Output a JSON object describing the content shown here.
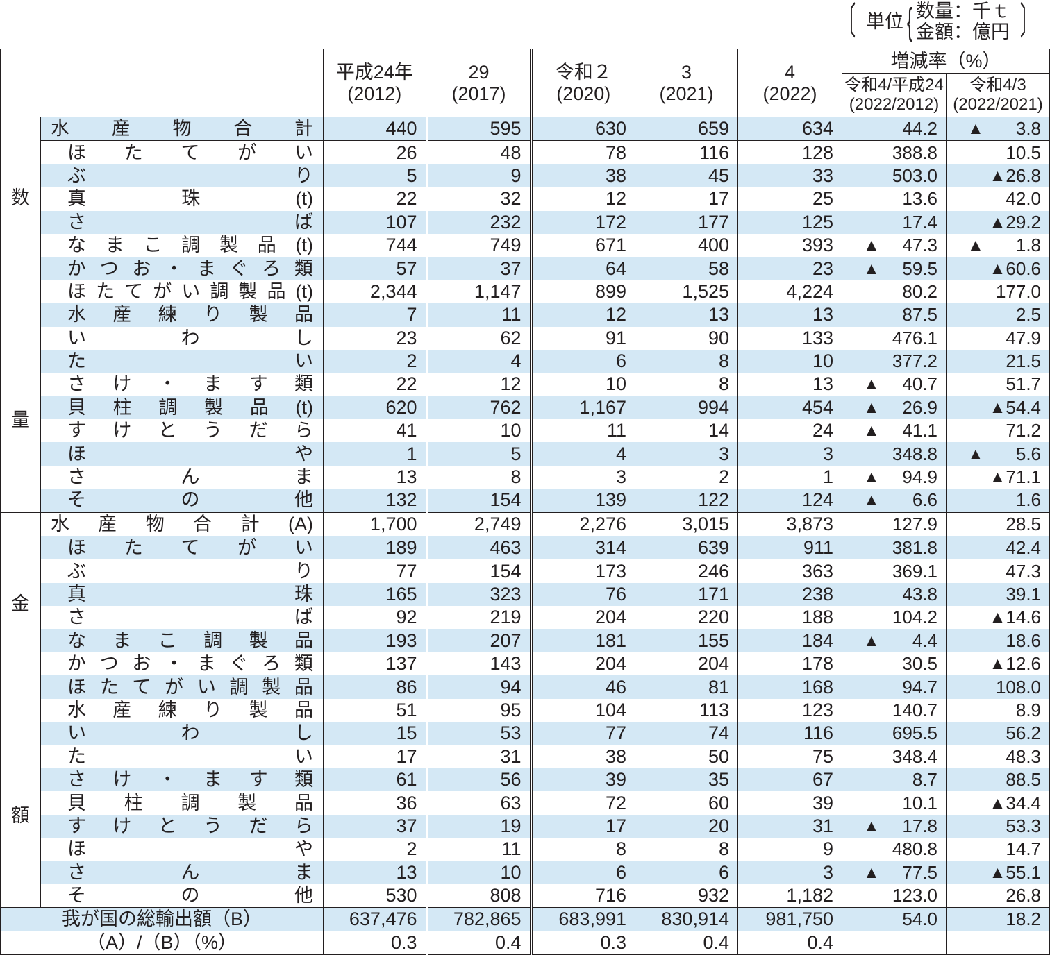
{
  "unit_note": {
    "label": "単位",
    "quantity": "数量：千ｔ",
    "value": "金額：億円"
  },
  "header": {
    "years": [
      {
        "era": "平成24年",
        "western": "(2012)"
      },
      {
        "era": "29",
        "western": "(2017)"
      },
      {
        "era": "令和２",
        "western": "(2020)"
      },
      {
        "era": "3",
        "western": "(2021)"
      },
      {
        "era": "4",
        "western": "(2022)"
      }
    ],
    "rate_group": "増減率（%）",
    "rate_cols": [
      {
        "era": "令和4/平成24",
        "western": "(2022/2012)"
      },
      {
        "era": "令和4/3",
        "western": "(2022/2021)"
      }
    ]
  },
  "sections": [
    {
      "category": [
        "数",
        "量"
      ],
      "rows": [
        {
          "name": [
            "水",
            "産",
            "物",
            "合",
            "計"
          ],
          "values": [
            "440",
            "595",
            "630",
            "659",
            "634"
          ],
          "rate1": "44.2",
          "rate2": "▲ 3.8",
          "shade": true
        },
        {
          "name": [
            "ほ",
            "た",
            "て",
            "が",
            "い"
          ],
          "values": [
            "26",
            "48",
            "78",
            "116",
            "128"
          ],
          "rate1": "388.8",
          "rate2": "10.5",
          "shade": false,
          "indent": true
        },
        {
          "name": [
            "ぶ",
            "り"
          ],
          "values": [
            "5",
            "9",
            "38",
            "45",
            "33"
          ],
          "rate1": "503.0",
          "rate2": "▲26.8",
          "shade": true,
          "indent": true
        },
        {
          "name": [
            "真",
            "珠",
            "(t)"
          ],
          "values": [
            "22",
            "32",
            "12",
            "17",
            "25"
          ],
          "rate1": "13.6",
          "rate2": "42.0",
          "shade": false,
          "indent": true
        },
        {
          "name": [
            "さ",
            "ば"
          ],
          "values": [
            "107",
            "232",
            "172",
            "177",
            "125"
          ],
          "rate1": "17.4",
          "rate2": "▲29.2",
          "shade": true,
          "indent": true
        },
        {
          "name": [
            "な",
            "ま",
            "こ",
            "調",
            "製",
            "品",
            "(t)"
          ],
          "values": [
            "744",
            "749",
            "671",
            "400",
            "393"
          ],
          "rate1": "▲ 47.3",
          "rate2": "▲ 1.8",
          "shade": false,
          "indent": true
        },
        {
          "name": [
            "か",
            "つ",
            "お",
            "・",
            "ま",
            "ぐ",
            "ろ",
            "類"
          ],
          "values": [
            "57",
            "37",
            "64",
            "58",
            "23"
          ],
          "rate1": "▲ 59.5",
          "rate2": "▲60.6",
          "shade": true,
          "indent": true
        },
        {
          "name": [
            "ほ",
            "た",
            "て",
            "が",
            "い",
            "調",
            "製",
            "品",
            "(t)"
          ],
          "values": [
            "2,344",
            "1,147",
            "899",
            "1,525",
            "4,224"
          ],
          "rate1": "80.2",
          "rate2": "177.0",
          "shade": false,
          "indent": true
        },
        {
          "name": [
            "水",
            "産",
            "練",
            "り",
            "製",
            "品"
          ],
          "values": [
            "7",
            "11",
            "12",
            "13",
            "13"
          ],
          "rate1": "87.5",
          "rate2": "2.5",
          "shade": true,
          "indent": true
        },
        {
          "name": [
            "い",
            "わ",
            "し"
          ],
          "values": [
            "23",
            "62",
            "91",
            "90",
            "133"
          ],
          "rate1": "476.1",
          "rate2": "47.9",
          "shade": false,
          "indent": true
        },
        {
          "name": [
            "た",
            "い"
          ],
          "values": [
            "2",
            "4",
            "6",
            "8",
            "10"
          ],
          "rate1": "377.2",
          "rate2": "21.5",
          "shade": true,
          "indent": true
        },
        {
          "name": [
            "さ",
            "け",
            "・",
            "ま",
            "す",
            "類"
          ],
          "values": [
            "22",
            "12",
            "10",
            "8",
            "13"
          ],
          "rate1": "▲ 40.7",
          "rate2": "51.7",
          "shade": false,
          "indent": true
        },
        {
          "name": [
            "貝",
            "柱",
            "調",
            "製",
            "品",
            "(t)"
          ],
          "values": [
            "620",
            "762",
            "1,167",
            "994",
            "454"
          ],
          "rate1": "▲ 26.9",
          "rate2": "▲54.4",
          "shade": true,
          "indent": true
        },
        {
          "name": [
            "す",
            "け",
            "と",
            "う",
            "だ",
            "ら"
          ],
          "values": [
            "41",
            "10",
            "11",
            "14",
            "24"
          ],
          "rate1": "▲ 41.1",
          "rate2": "71.2",
          "shade": false,
          "indent": true
        },
        {
          "name": [
            "ほ",
            "や"
          ],
          "values": [
            "1",
            "5",
            "4",
            "3",
            "3"
          ],
          "rate1": "348.8",
          "rate2": "▲ 5.6",
          "shade": true,
          "indent": true
        },
        {
          "name": [
            "さ",
            "ん",
            "ま"
          ],
          "values": [
            "13",
            "8",
            "3",
            "2",
            "1"
          ],
          "rate1": "▲ 94.9",
          "rate2": "▲71.1",
          "shade": false,
          "indent": true
        },
        {
          "name": [
            "そ",
            "の",
            "他"
          ],
          "values": [
            "132",
            "154",
            "139",
            "122",
            "124"
          ],
          "rate1": "▲ 6.6",
          "rate2": "1.6",
          "shade": true,
          "indent": true
        }
      ]
    },
    {
      "category": [
        "金",
        "額"
      ],
      "rows": [
        {
          "name": [
            "水",
            "産",
            "物",
            "合",
            "計",
            "(A)"
          ],
          "values": [
            "1,700",
            "2,749",
            "2,276",
            "3,015",
            "3,873"
          ],
          "rate1": "127.9",
          "rate2": "28.5",
          "shade": false
        },
        {
          "name": [
            "ほ",
            "た",
            "て",
            "が",
            "い"
          ],
          "values": [
            "189",
            "463",
            "314",
            "639",
            "911"
          ],
          "rate1": "381.8",
          "rate2": "42.4",
          "shade": true,
          "indent": true
        },
        {
          "name": [
            "ぶ",
            "り"
          ],
          "values": [
            "77",
            "154",
            "173",
            "246",
            "363"
          ],
          "rate1": "369.1",
          "rate2": "47.3",
          "shade": false,
          "indent": true
        },
        {
          "name": [
            "真",
            "珠"
          ],
          "values": [
            "165",
            "323",
            "76",
            "171",
            "238"
          ],
          "rate1": "43.8",
          "rate2": "39.1",
          "shade": true,
          "indent": true
        },
        {
          "name": [
            "さ",
            "ば"
          ],
          "values": [
            "92",
            "219",
            "204",
            "220",
            "188"
          ],
          "rate1": "104.2",
          "rate2": "▲14.6",
          "shade": false,
          "indent": true
        },
        {
          "name": [
            "な",
            "ま",
            "こ",
            "調",
            "製",
            "品"
          ],
          "values": [
            "193",
            "207",
            "181",
            "155",
            "184"
          ],
          "rate1": "▲ 4.4",
          "rate2": "18.6",
          "shade": true,
          "indent": true
        },
        {
          "name": [
            "か",
            "つ",
            "お",
            "・",
            "ま",
            "ぐ",
            "ろ",
            "類"
          ],
          "values": [
            "137",
            "143",
            "204",
            "204",
            "178"
          ],
          "rate1": "30.5",
          "rate2": "▲12.6",
          "shade": false,
          "indent": true
        },
        {
          "name": [
            "ほ",
            "た",
            "て",
            "が",
            "い",
            "調",
            "製",
            "品"
          ],
          "values": [
            "86",
            "94",
            "46",
            "81",
            "168"
          ],
          "rate1": "94.7",
          "rate2": "108.0",
          "shade": true,
          "indent": true
        },
        {
          "name": [
            "水",
            "産",
            "練",
            "り",
            "製",
            "品"
          ],
          "values": [
            "51",
            "95",
            "104",
            "113",
            "123"
          ],
          "rate1": "140.7",
          "rate2": "8.9",
          "shade": false,
          "indent": true
        },
        {
          "name": [
            "い",
            "わ",
            "し"
          ],
          "values": [
            "15",
            "53",
            "77",
            "74",
            "116"
          ],
          "rate1": "695.5",
          "rate2": "56.2",
          "shade": true,
          "indent": true
        },
        {
          "name": [
            "た",
            "い"
          ],
          "values": [
            "17",
            "31",
            "38",
            "50",
            "75"
          ],
          "rate1": "348.4",
          "rate2": "48.3",
          "shade": false,
          "indent": true
        },
        {
          "name": [
            "さ",
            "け",
            "・",
            "ま",
            "す",
            "類"
          ],
          "values": [
            "61",
            "56",
            "39",
            "35",
            "67"
          ],
          "rate1": "8.7",
          "rate2": "88.5",
          "shade": true,
          "indent": true
        },
        {
          "name": [
            "貝",
            "柱",
            "調",
            "製",
            "品"
          ],
          "values": [
            "36",
            "63",
            "72",
            "60",
            "39"
          ],
          "rate1": "10.1",
          "rate2": "▲34.4",
          "shade": false,
          "indent": true
        },
        {
          "name": [
            "す",
            "け",
            "と",
            "う",
            "だ",
            "ら"
          ],
          "values": [
            "37",
            "19",
            "17",
            "20",
            "31"
          ],
          "rate1": "▲ 17.8",
          "rate2": "53.3",
          "shade": true,
          "indent": true
        },
        {
          "name": [
            "ほ",
            "や"
          ],
          "values": [
            "2",
            "11",
            "8",
            "8",
            "9"
          ],
          "rate1": "480.8",
          "rate2": "14.7",
          "shade": false,
          "indent": true
        },
        {
          "name": [
            "さ",
            "ん",
            "ま"
          ],
          "values": [
            "13",
            "10",
            "6",
            "6",
            "3"
          ],
          "rate1": "▲ 77.5",
          "rate2": "▲55.1",
          "shade": true,
          "indent": true
        },
        {
          "name": [
            "そ",
            "の",
            "他"
          ],
          "values": [
            "530",
            "808",
            "716",
            "932",
            "1,182"
          ],
          "rate1": "123.0",
          "rate2": "26.8",
          "shade": false,
          "indent": true
        }
      ]
    }
  ],
  "footer_rows": [
    {
      "label": "我が国の総輸出額（B）",
      "values": [
        "637,476",
        "782,865",
        "683,991",
        "830,914",
        "981,750"
      ],
      "rate1": "54.0",
      "rate2": "18.2",
      "shade": true
    },
    {
      "label": "（A）/（B）（%）",
      "values": [
        "0.3",
        "0.4",
        "0.3",
        "0.4",
        "0.4"
      ],
      "rate1": "",
      "rate2": "",
      "shade": false
    }
  ]
}
